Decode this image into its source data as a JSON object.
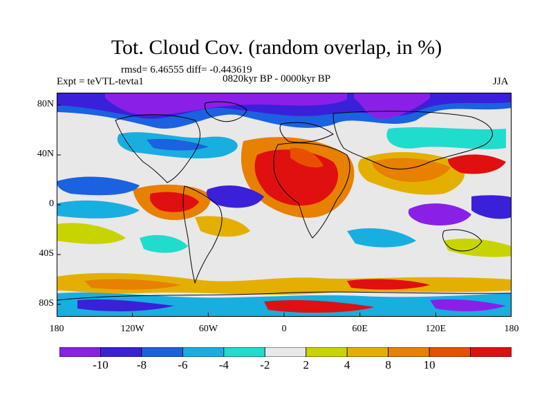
{
  "header": {
    "title": "Tot. Cloud Cov. (random overlap, in %)",
    "stats": "rmsd= 6.46555 diff= -0.443619",
    "experiment": "Expt = teVTL-tevta1",
    "period": "0820kyr BP - 0000kyr BP",
    "season": "JJA"
  },
  "axes": {
    "lat_ticks": [
      {
        "value": 80,
        "label": "80N"
      },
      {
        "value": 40,
        "label": "40N"
      },
      {
        "value": 0,
        "label": "0"
      },
      {
        "value": -40,
        "label": "40S"
      },
      {
        "value": -80,
        "label": "80S"
      }
    ],
    "lon_ticks": [
      {
        "value": -180,
        "label": "180"
      },
      {
        "value": -120,
        "label": "120W"
      },
      {
        "value": -60,
        "label": "60W"
      },
      {
        "value": 0,
        "label": "0"
      },
      {
        "value": 60,
        "label": "60E"
      },
      {
        "value": 120,
        "label": "120E"
      },
      {
        "value": 180,
        "label": "180"
      }
    ],
    "lat_range": [
      -90,
      90
    ],
    "lon_range": [
      -180,
      180
    ]
  },
  "colorbar": {
    "colors": [
      "#8a20e8",
      "#3a20d8",
      "#1a62e0",
      "#18aee0",
      "#20dccc",
      "#e8e8e8",
      "#c8d400",
      "#e4b000",
      "#e88000",
      "#e85000",
      "#e01010"
    ],
    "labels": [
      "-10",
      "-8",
      "-6",
      "-4",
      "-2",
      "2",
      "4",
      "8",
      "10"
    ]
  }
}
